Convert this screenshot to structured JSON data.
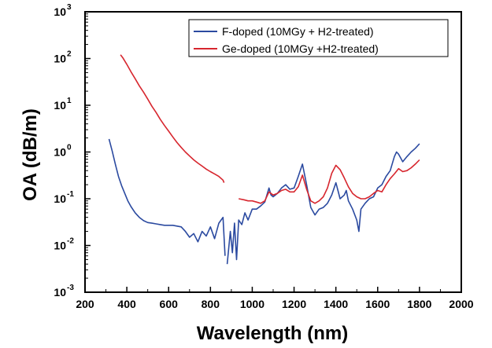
{
  "chart_data": {
    "type": "line",
    "xlabel": "Wavelength (nm)",
    "ylabel": "OA (dB/m)",
    "xlim": [
      200,
      2000
    ],
    "ylim": [
      0.001,
      1000
    ],
    "yscale": "log",
    "x_ticks": [
      "200",
      "400",
      "600",
      "800",
      "1000",
      "1200",
      "1400",
      "1600",
      "1800",
      "2000"
    ],
    "y_ticks": [
      {
        "base": "10",
        "exp": "-3"
      },
      {
        "base": "10",
        "exp": "-2"
      },
      {
        "base": "10",
        "exp": "-1"
      },
      {
        "base": "10",
        "exp": "0"
      },
      {
        "base": "10",
        "exp": "1"
      },
      {
        "base": "10",
        "exp": "2"
      },
      {
        "base": "10",
        "exp": "3"
      }
    ],
    "legend_position": "top-right",
    "grid": false,
    "series": [
      {
        "name": "F-doped (10MGy + H2-treated)",
        "color": "#2b4aa0",
        "segments": [
          {
            "x": [
              315,
              330,
              345,
              360,
              375,
              390,
              405,
              420,
              440,
              460,
              480,
              500,
              520,
              540,
              560,
              580,
              600,
              620,
              640,
              660,
              680,
              700,
              720,
              740,
              760,
              780,
              800,
              820,
              840,
              860,
              870
            ],
            "y": [
              1.9,
              1.05,
              0.55,
              0.3,
              0.19,
              0.13,
              0.09,
              0.068,
              0.05,
              0.04,
              0.034,
              0.031,
              0.03,
              0.029,
              0.028,
              0.027,
              0.027,
              0.027,
              0.026,
              0.025,
              0.02,
              0.015,
              0.018,
              0.012,
              0.02,
              0.016,
              0.025,
              0.014,
              0.03,
              0.04,
              0.006
            ]
          },
          {
            "x": [
              880,
              895,
              905,
              915,
              925,
              935,
              950,
              965,
              980,
              1000,
              1020,
              1040,
              1060,
              1080,
              1090,
              1100,
              1120,
              1140,
              1160,
              1180,
              1200,
              1220,
              1240,
              1260,
              1280,
              1300,
              1320,
              1340,
              1360,
              1380,
              1400,
              1410,
              1420,
              1440,
              1450,
              1460,
              1480,
              1500,
              1510,
              1520,
              1540,
              1560,
              1580,
              1600,
              1620,
              1640,
              1660,
              1680,
              1690,
              1700,
              1720,
              1740,
              1760,
              1780,
              1800
            ],
            "y": [
              0.004,
              0.02,
              0.007,
              0.03,
              0.005,
              0.035,
              0.028,
              0.05,
              0.035,
              0.06,
              0.06,
              0.07,
              0.085,
              0.17,
              0.12,
              0.11,
              0.13,
              0.17,
              0.2,
              0.16,
              0.17,
              0.3,
              0.55,
              0.2,
              0.065,
              0.045,
              0.06,
              0.065,
              0.08,
              0.12,
              0.22,
              0.15,
              0.1,
              0.12,
              0.15,
              0.09,
              0.06,
              0.035,
              0.02,
              0.06,
              0.08,
              0.1,
              0.11,
              0.17,
              0.2,
              0.3,
              0.4,
              0.8,
              1.0,
              0.9,
              0.62,
              0.8,
              1.0,
              1.2,
              1.5
            ]
          }
        ]
      },
      {
        "name": "Ge-doped (10MGy +H2-treated)",
        "color": "#d7262e",
        "segments": [
          {
            "x": [
              370,
              380,
              400,
              420,
              440,
              460,
              480,
              500,
              520,
              540,
              560,
              580,
              600,
              620,
              640,
              660,
              680,
              700,
              720,
              740,
              760,
              780,
              800,
              820,
              840,
              860,
              865
            ],
            "y": [
              120,
              105,
              75,
              52,
              37,
              26,
              19,
              13.5,
              9.5,
              7,
              5,
              3.7,
              2.8,
              2.1,
              1.6,
              1.25,
              1.0,
              0.82,
              0.68,
              0.58,
              0.5,
              0.43,
              0.38,
              0.34,
              0.3,
              0.25,
              0.22
            ]
          },
          {
            "x": [
              935,
              960,
              980,
              1000,
              1020,
              1040,
              1060,
              1080,
              1100,
              1120,
              1140,
              1160,
              1180,
              1200,
              1220,
              1240,
              1260,
              1280,
              1300,
              1320,
              1340,
              1360,
              1380,
              1400,
              1420,
              1440,
              1460,
              1480,
              1500,
              1520,
              1540,
              1560,
              1580,
              1600,
              1620,
              1640,
              1660,
              1680,
              1700,
              1720,
              1740,
              1760,
              1780,
              1800
            ],
            "y": [
              0.1,
              0.095,
              0.09,
              0.09,
              0.085,
              0.08,
              0.09,
              0.14,
              0.12,
              0.13,
              0.15,
              0.16,
              0.14,
              0.14,
              0.18,
              0.32,
              0.16,
              0.09,
              0.08,
              0.09,
              0.11,
              0.17,
              0.35,
              0.52,
              0.42,
              0.28,
              0.18,
              0.13,
              0.11,
              0.1,
              0.1,
              0.11,
              0.13,
              0.15,
              0.14,
              0.2,
              0.27,
              0.34,
              0.44,
              0.38,
              0.4,
              0.46,
              0.55,
              0.68
            ]
          }
        ]
      }
    ]
  }
}
